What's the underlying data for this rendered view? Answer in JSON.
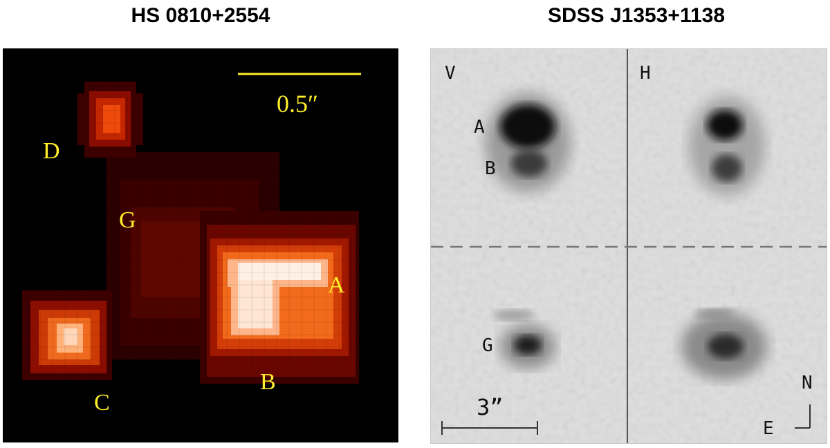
{
  "left_figure": {
    "title": "HS 0810+2554",
    "scale_label": "0.5″",
    "image_labels": [
      "D",
      "G",
      "A",
      "B",
      "C"
    ],
    "colors": {
      "label": "#ffef2a",
      "scale_bar": "#ffef2a",
      "background": "#000000"
    }
  },
  "right_figure": {
    "title": "SDSS J1353+1138",
    "band_labels": [
      "V",
      "H"
    ],
    "image_labels": [
      "A",
      "B",
      "G"
    ],
    "scale_label": "3”",
    "compass": {
      "north": "N",
      "east": "E"
    }
  }
}
